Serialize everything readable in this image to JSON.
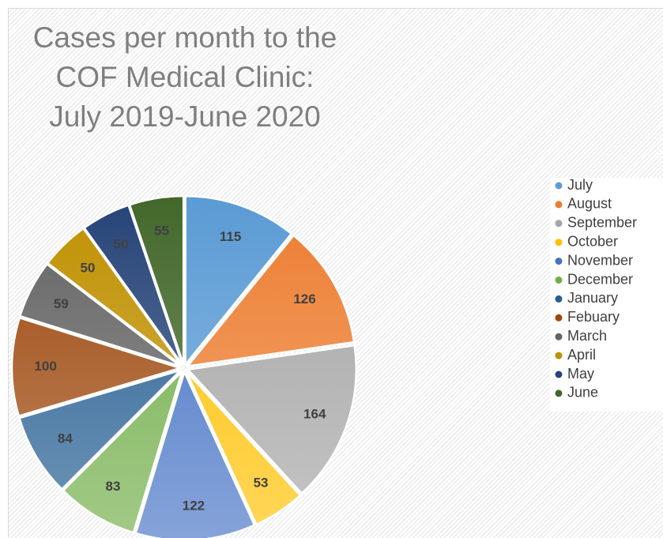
{
  "chart_data": {
    "type": "pie",
    "title": "Cases per month to the COF Medical Clinic:\nJuly 2019-June 2020",
    "categories": [
      "July",
      "August",
      "September",
      "October",
      "November",
      "December",
      "January",
      "Febuary",
      "March",
      "April",
      "May",
      "June"
    ],
    "values": [
      115,
      126,
      164,
      53,
      122,
      83,
      84,
      100,
      59,
      50,
      50,
      55
    ],
    "colors": [
      "#5b9bd5",
      "#ed7d31",
      "#a5a5a5",
      "#ffc000",
      "#4472c4",
      "#70ad47",
      "#255e91",
      "#9e480e",
      "#636363",
      "#bf9000",
      "#264478",
      "#43682b"
    ],
    "legend": "right"
  }
}
